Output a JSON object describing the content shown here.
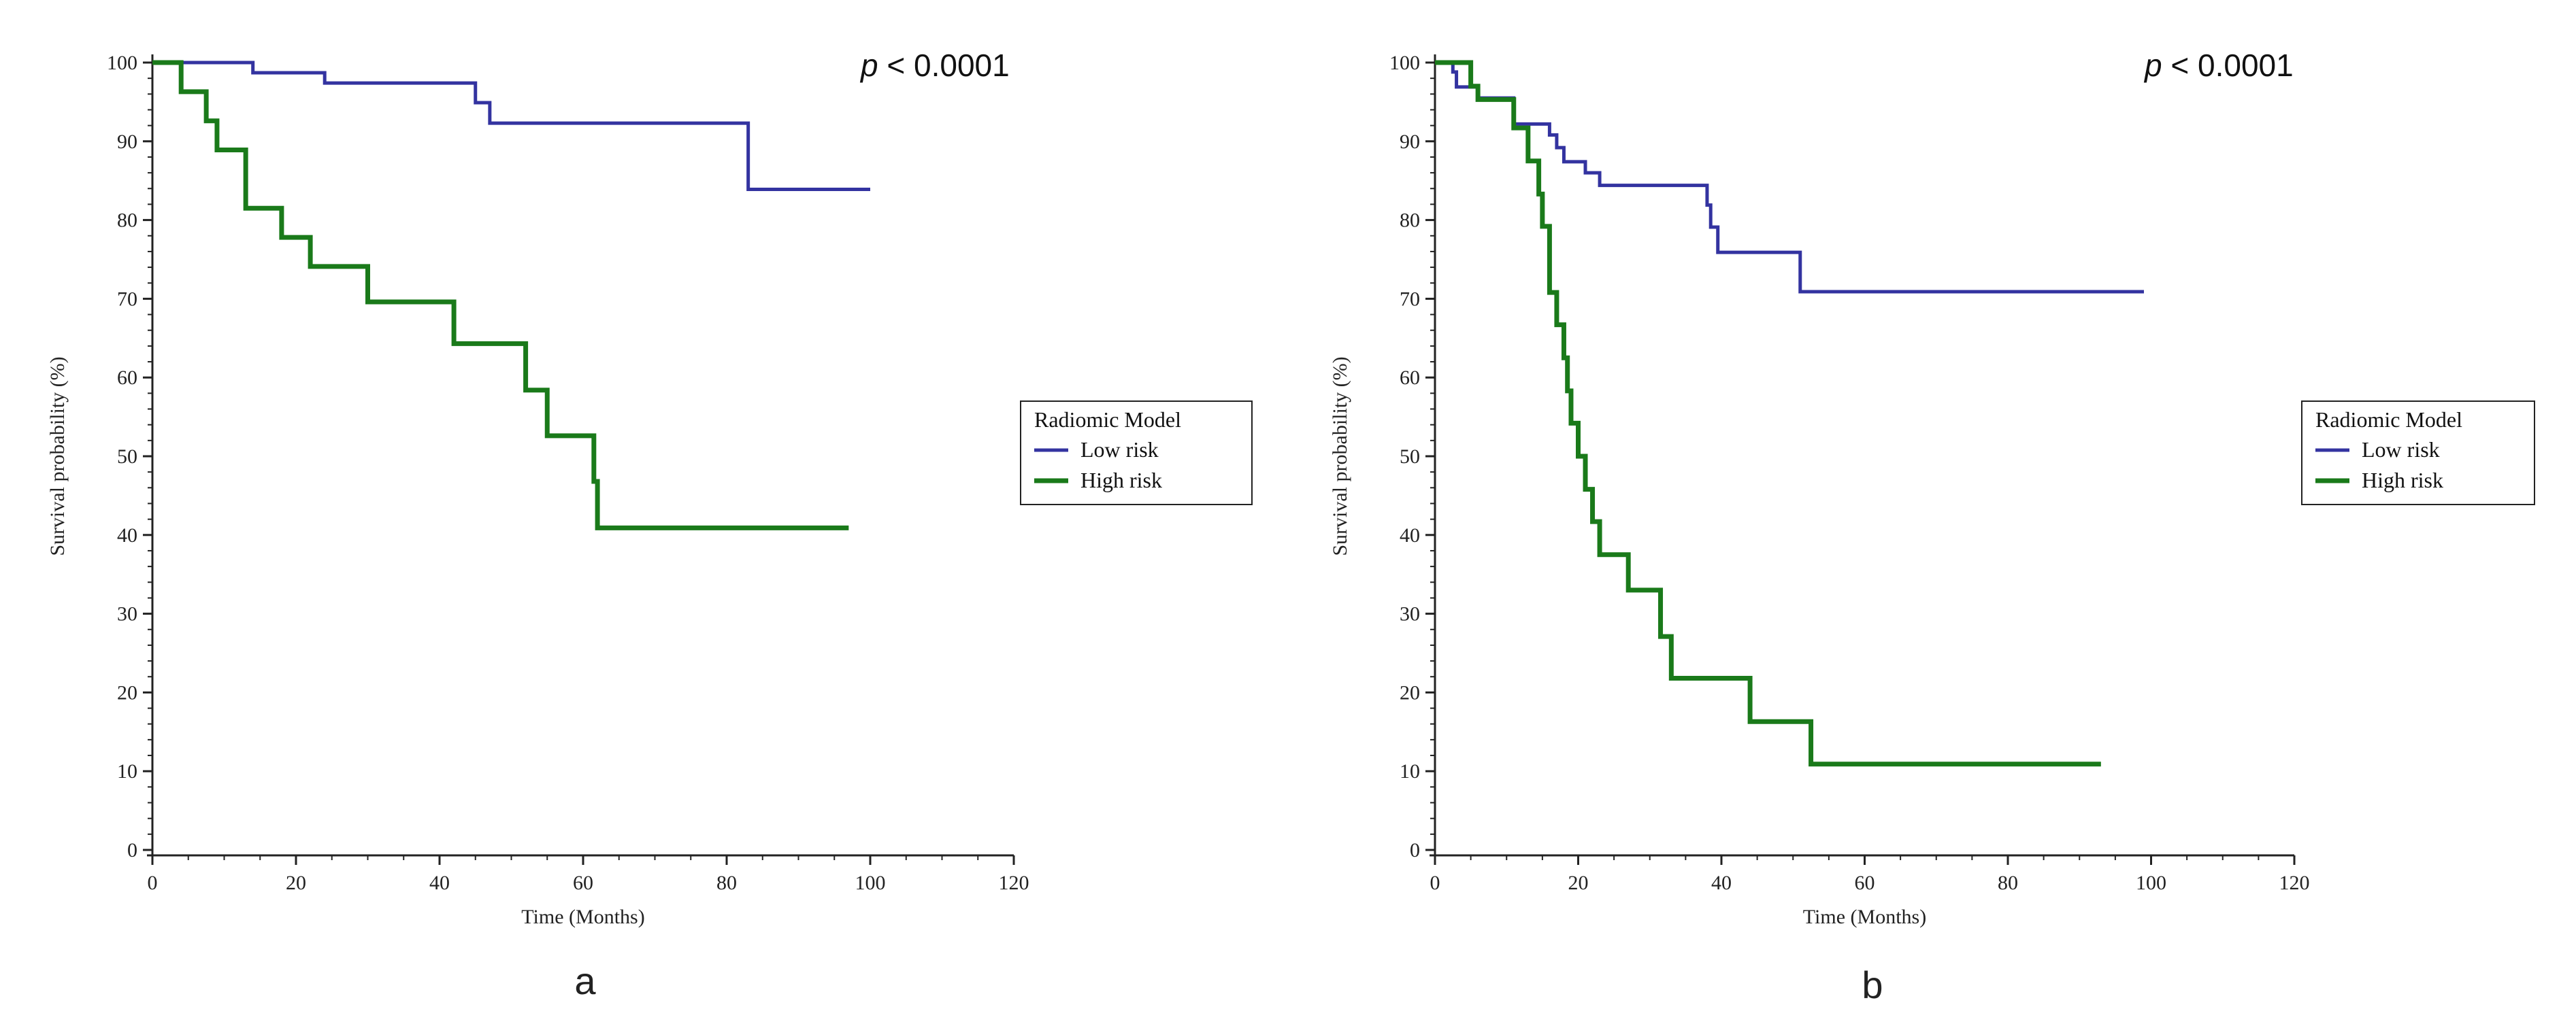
{
  "chart_data": [
    {
      "type": "line",
      "step": true,
      "panel_label": "a",
      "annotation": {
        "prefix": "p",
        "text": " < 0.0001"
      },
      "xlabel": "Time (Months)",
      "ylabel": "Survival probability (%)",
      "xlim": [
        0,
        120
      ],
      "ylim": [
        0,
        100
      ],
      "xticks": [
        0,
        20,
        40,
        60,
        80,
        100,
        120
      ],
      "yticks": [
        0,
        10,
        20,
        30,
        40,
        50,
        60,
        70,
        80,
        90,
        100
      ],
      "legend": {
        "title": "Radiomic Model",
        "placement": "right"
      },
      "series": [
        {
          "name": "Low risk",
          "color": "#3333a0",
          "x": [
            0,
            14,
            24,
            45,
            47,
            83,
            100
          ],
          "y": [
            100,
            98.7,
            97.4,
            94.9,
            92.3,
            83.9,
            83.9
          ]
        },
        {
          "name": "High risk",
          "color": "#1a7a1a",
          "x": [
            0,
            4,
            7.5,
            9,
            13,
            18,
            22,
            30,
            42,
            52,
            55,
            61.5,
            62,
            97
          ],
          "y": [
            100,
            96.3,
            92.6,
            88.9,
            81.5,
            77.8,
            74.1,
            69.6,
            64.3,
            58.4,
            52.6,
            46.8,
            40.9,
            40.9
          ]
        }
      ]
    },
    {
      "type": "line",
      "step": true,
      "panel_label": "b",
      "annotation": {
        "prefix": "p",
        "text": " < 0.0001"
      },
      "xlabel": "Time (Months)",
      "ylabel": "Survival probability (%)",
      "xlim": [
        0,
        120
      ],
      "ylim": [
        0,
        100
      ],
      "xticks": [
        0,
        20,
        40,
        60,
        80,
        100,
        120
      ],
      "yticks": [
        0,
        10,
        20,
        30,
        40,
        50,
        60,
        70,
        80,
        90,
        100
      ],
      "legend": {
        "title": "Radiomic Model",
        "placement": "right"
      },
      "series": [
        {
          "name": "Low risk",
          "color": "#3333a0",
          "x": [
            0,
            2.5,
            3,
            6,
            11,
            14,
            16,
            17,
            18,
            21,
            23,
            38,
            38.5,
            39.5,
            51,
            99
          ],
          "y": [
            100,
            98.8,
            96.9,
            95.5,
            92.2,
            92.2,
            90.8,
            89.2,
            87.4,
            86.0,
            84.4,
            81.9,
            79.1,
            75.9,
            70.9,
            70.9
          ]
        },
        {
          "name": "High risk",
          "color": "#1a7a1a",
          "x": [
            0,
            5,
            6,
            10.5,
            11,
            13,
            14.5,
            15,
            16,
            17,
            18,
            18.5,
            19,
            20,
            21,
            22,
            23,
            27,
            31.5,
            33,
            44,
            52.5,
            93
          ],
          "y": [
            100,
            97.0,
            95.3,
            95.3,
            91.7,
            87.5,
            83.3,
            79.2,
            70.8,
            66.7,
            62.5,
            58.3,
            54.2,
            50.0,
            45.8,
            41.7,
            37.5,
            33.0,
            27.1,
            21.8,
            16.3,
            10.9,
            10.9
          ]
        }
      ]
    }
  ]
}
